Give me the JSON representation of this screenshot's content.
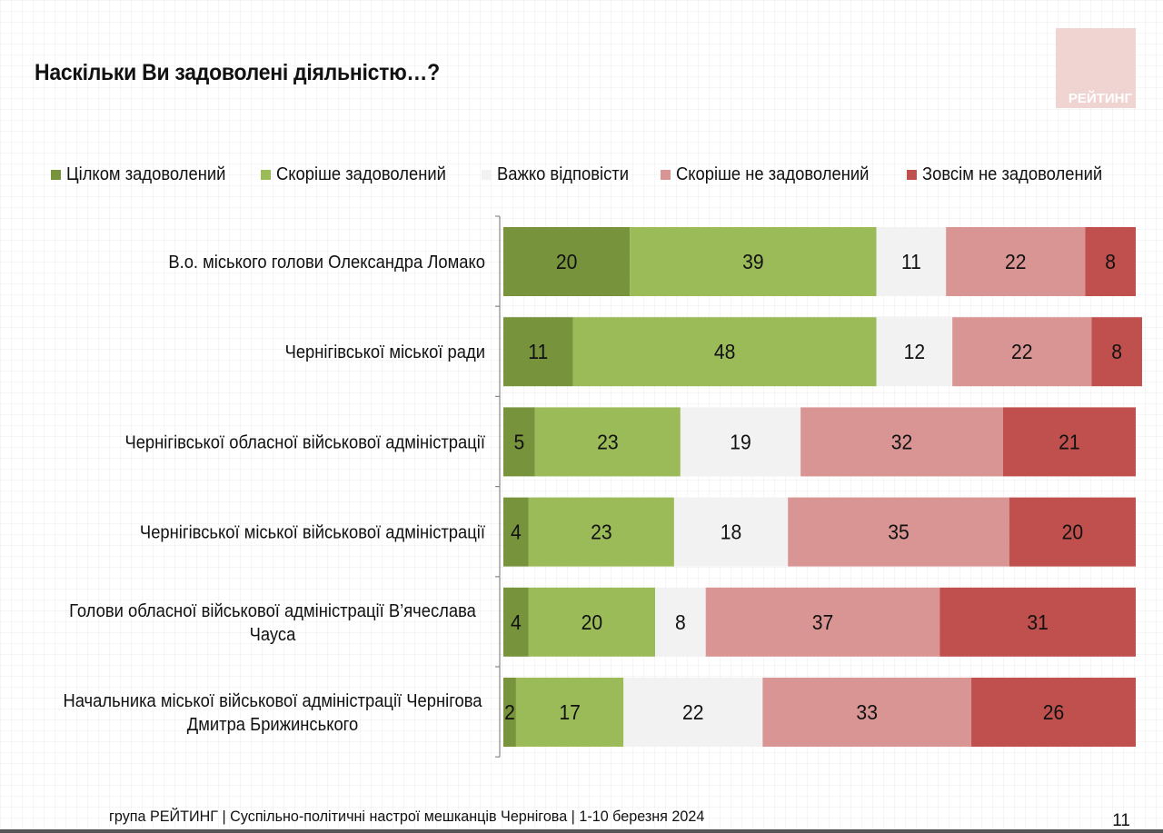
{
  "header": {
    "title": "Наскільки Ви задоволені діяльністю…?",
    "logo_text": "РЕЙТИНГ"
  },
  "chart_data": {
    "type": "bar",
    "orientation": "horizontal",
    "stacked": true,
    "title": "Наскільки Ви задоволені діяльністю…?",
    "xlabel": "",
    "ylabel": "",
    "xlim": [
      0,
      100
    ],
    "legend_position": "top",
    "categories": [
      "В.о. міського голови Олександра Ломако",
      "Чернігівської міської ради",
      "Чернігівської обласної військової адміністрації",
      "Чернігівської міської військової адміністрації",
      "Голови обласної військової адміністрації В’ячеслава Чауса",
      "Начальника міської військової адміністрації Чернігова Дмитра Брижинського"
    ],
    "category_lines": [
      [
        "В.о. міського голови Олександра Ломако"
      ],
      [
        "Чернігівської міської ради"
      ],
      [
        "Чернігівської обласної військової адміністрації"
      ],
      [
        "Чернігівської міської військової адміністрації"
      ],
      [
        "Голови обласної військової адміністрації В’ячеслава",
        "Чауса"
      ],
      [
        "Начальника міської військової адміністрації Чернігова",
        "Дмитра Брижинського"
      ]
    ],
    "series": [
      {
        "name": "Цілком задоволений",
        "color": "#77933C",
        "values": [
          20,
          11,
          5,
          4,
          4,
          2
        ]
      },
      {
        "name": "Скоріше задоволений",
        "color": "#9BBB59",
        "values": [
          39,
          48,
          23,
          23,
          20,
          17
        ]
      },
      {
        "name": "Важко відповісти",
        "color": "#F2F2F2",
        "values": [
          11,
          12,
          19,
          18,
          8,
          22
        ]
      },
      {
        "name": "Скоріше не задоволений",
        "color": "#D99594",
        "values": [
          22,
          22,
          32,
          35,
          37,
          33
        ]
      },
      {
        "name": "Зовсім не задоволений",
        "color": "#C0504D",
        "values": [
          8,
          8,
          21,
          20,
          31,
          26
        ]
      }
    ]
  },
  "footer": {
    "text": "група РЕЙТИНГ  | Суспільно-політичні  настрої мешканців Чернігова | 1-10 березня 2024",
    "page_number": "11"
  }
}
